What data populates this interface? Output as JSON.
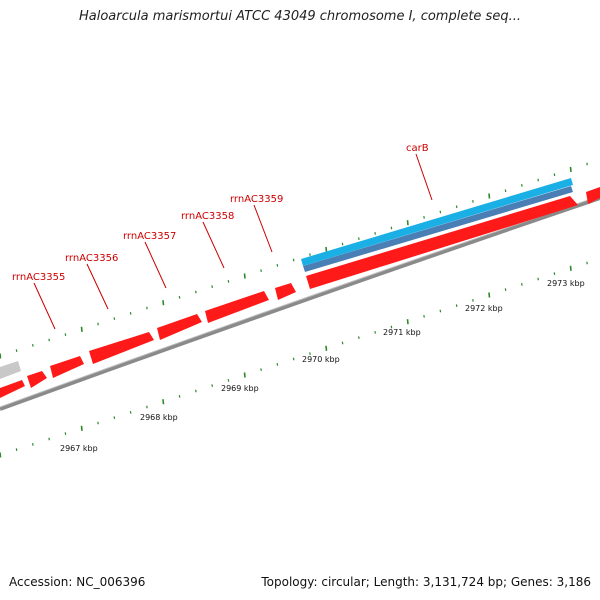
{
  "title": "Haloarcula marismortui ATCC 43049 chromosome I, complete seq...",
  "accession": "Accession: NC_006396",
  "summary": "Topology: circular; Length: 3,131,724 bp; Genes: 3,186",
  "colors": {
    "backbone": "#8a8a8a",
    "gene_forward": "#ff1a1a",
    "gene_label": "#cc0000",
    "tick": "#2a8a2a",
    "blue_light": "#1ab0e6",
    "blue_dark": "#4a7fb5",
    "grey_feature": "#c8c8c8"
  },
  "gene_labels": [
    {
      "name": "rrnAC3355"
    },
    {
      "name": "rrnAC3356"
    },
    {
      "name": "rrnAC3357"
    },
    {
      "name": "rrnAC3358"
    },
    {
      "name": "rrnAC3359"
    },
    {
      "name": "carB"
    }
  ],
  "kbp_labels": [
    "2967 kbp",
    "2968 kbp",
    "2969 kbp",
    "2970 kbp",
    "2971 kbp",
    "2972 kbp",
    "2973 kbp"
  ]
}
